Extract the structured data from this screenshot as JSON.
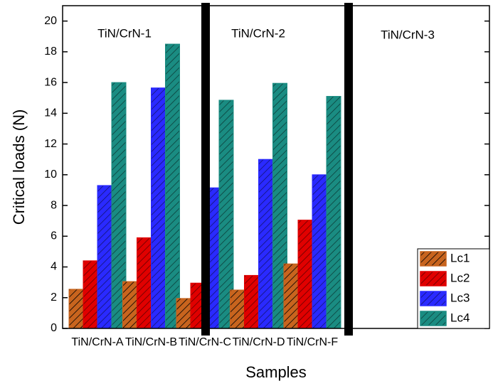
{
  "chart_data": {
    "type": "bar",
    "ylabel": "Critical loads (N)",
    "xlabel": "Samples",
    "categories": [
      "TiN/CrN-A",
      "TiN/CrN-B",
      "TiN/CrN-C",
      "TiN/CrN-D",
      "TiN/CrN-F"
    ],
    "series": [
      {
        "name": "Lc1",
        "color": "#c8641e",
        "values": [
          2.55,
          3.05,
          1.95,
          2.5,
          4.2
        ]
      },
      {
        "name": "Lc2",
        "color": "#e00000",
        "values": [
          4.4,
          5.9,
          2.95,
          3.45,
          7.05
        ]
      },
      {
        "name": "Lc3",
        "color": "#2a2aff",
        "values": [
          9.3,
          15.65,
          9.15,
          11.0,
          10.0
        ]
      },
      {
        "name": "Lc4",
        "color": "#1a8c82",
        "values": [
          16.0,
          18.5,
          14.85,
          15.95,
          15.1
        ]
      }
    ],
    "ylim": [
      0,
      21
    ],
    "yticks": [
      0,
      2,
      4,
      6,
      8,
      10,
      12,
      14,
      16,
      18,
      20
    ],
    "annotations": [
      "TiN/CrN-1",
      "TiN/CrN-2",
      "TiN/CrN-3"
    ],
    "legend": "lower right"
  }
}
